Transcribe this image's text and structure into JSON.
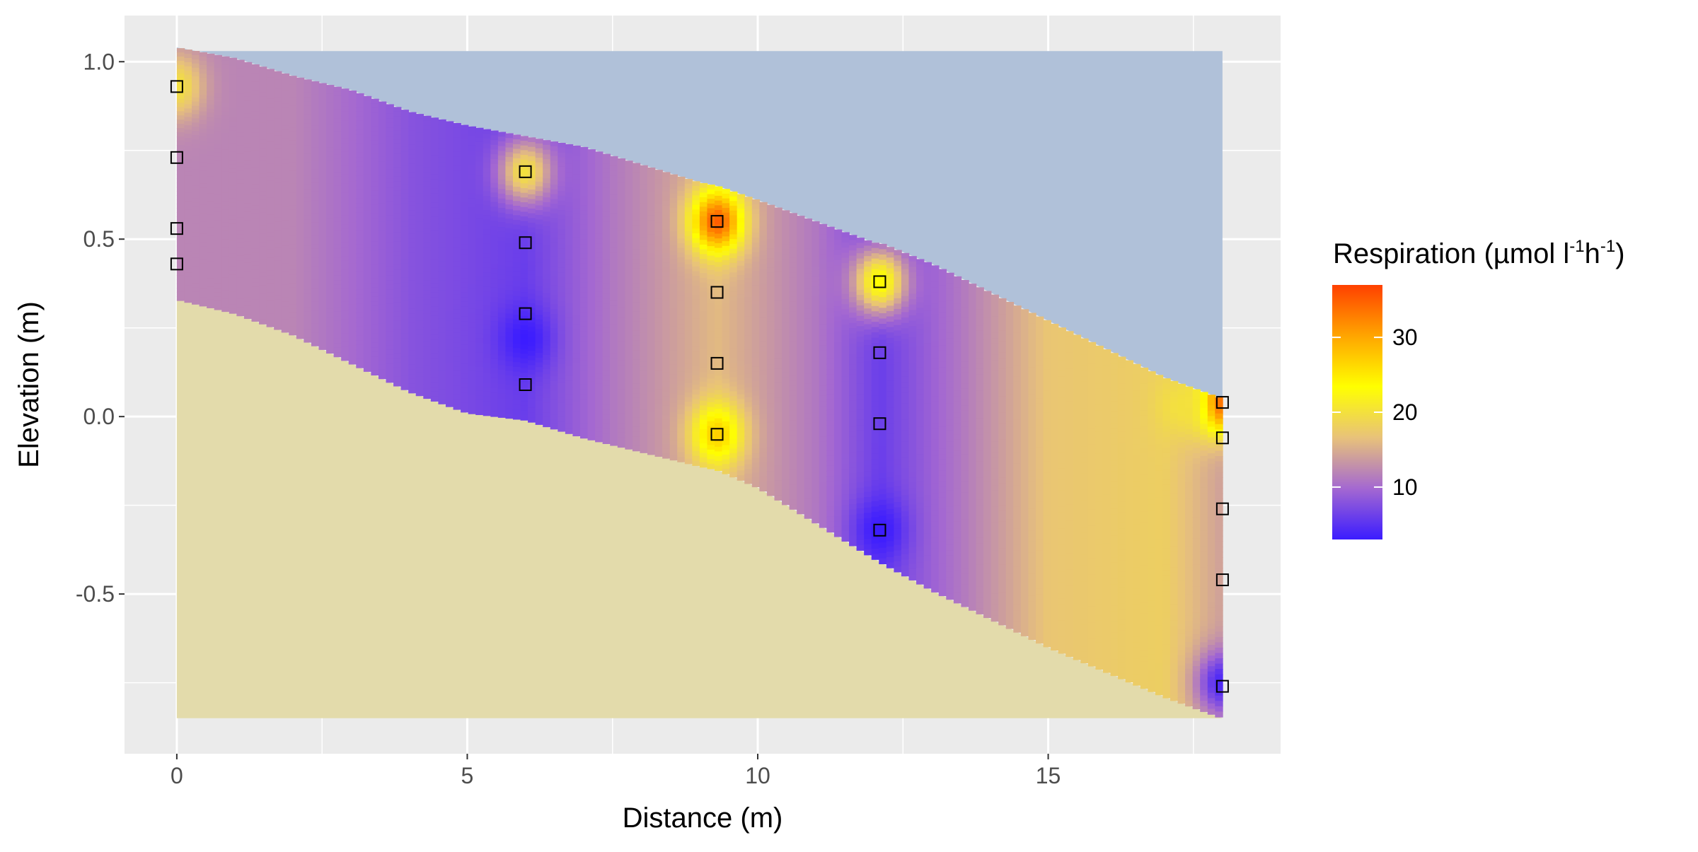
{
  "chart_data": {
    "type": "heatmap",
    "title": "",
    "xlabel": "Distance (m)",
    "ylabel": "Elevation (m)",
    "xlim": [
      -0.9,
      19.0
    ],
    "ylim": [
      -0.95,
      1.13
    ],
    "x_ticks": [
      0,
      5,
      10,
      15
    ],
    "x_tick_labels": [
      "0",
      "5",
      "10",
      "15"
    ],
    "y_ticks": [
      1.0,
      0.5,
      0.0,
      -0.5
    ],
    "y_tick_labels": [
      "1.0",
      "0.5",
      "0.0",
      "-0.5"
    ],
    "grid": true,
    "legend": {
      "title_main": "Respiration (µmol l",
      "title_sup1": "-1",
      "title_mid": "h",
      "title_sup2": "-1",
      "title_end": ")",
      "placement": "right",
      "range": [
        3,
        37
      ],
      "ticks": [
        10,
        20,
        30
      ],
      "tick_labels": [
        "10",
        "20",
        "30"
      ],
      "colors": [
        "#3b1cff",
        "#a468d1",
        "#e8c27a",
        "#ffff00",
        "#ffa500",
        "#ff4000"
      ]
    },
    "colors": {
      "water": "#b0c1d9",
      "sediment": "#e3dbab",
      "panel": "#ebebeb",
      "grid": "#ffffff"
    },
    "water_surface_y": 1.03,
    "sediment_bottom_y": -0.85,
    "water_sediment_boundary": {
      "x": [
        0,
        1,
        2,
        3,
        4,
        5,
        6,
        7,
        8,
        9,
        9.3,
        10,
        11,
        12,
        12.1,
        13,
        14,
        15,
        16,
        17,
        18
      ],
      "y": [
        1.04,
        1.01,
        0.96,
        0.92,
        0.86,
        0.82,
        0.79,
        0.76,
        0.71,
        0.66,
        0.65,
        0.61,
        0.55,
        0.49,
        0.49,
        0.43,
        0.35,
        0.27,
        0.19,
        0.11,
        0.05
      ]
    },
    "bedrock_boundary": {
      "x": [
        0,
        1,
        2,
        3,
        4,
        5,
        6,
        7,
        8,
        9,
        9.3,
        10,
        11,
        12,
        12.1,
        13,
        14,
        15,
        16,
        17,
        18
      ],
      "y": [
        0.33,
        0.29,
        0.23,
        0.15,
        0.07,
        0.01,
        -0.01,
        -0.06,
        -0.1,
        -0.14,
        -0.15,
        -0.2,
        -0.3,
        -0.4,
        -0.41,
        -0.49,
        -0.57,
        -0.65,
        -0.72,
        -0.79,
        -0.85
      ]
    },
    "respiration_field": {
      "background": 11,
      "lateral_trend": [
        {
          "x": 0,
          "v": 12
        },
        {
          "x": 2,
          "v": 12
        },
        {
          "x": 4,
          "v": 8
        },
        {
          "x": 6,
          "v": 6
        },
        {
          "x": 7.5,
          "v": 11
        },
        {
          "x": 9.3,
          "v": 16
        },
        {
          "x": 11,
          "v": 11
        },
        {
          "x": 12.1,
          "v": 6
        },
        {
          "x": 13.5,
          "v": 11
        },
        {
          "x": 15,
          "v": 17
        },
        {
          "x": 17,
          "v": 18
        },
        {
          "x": 18,
          "v": 14
        }
      ],
      "hotspots": [
        {
          "x": 0,
          "y": 0.93,
          "v": 20
        },
        {
          "x": 6,
          "y": 0.69,
          "v": 20
        },
        {
          "x": 9.3,
          "y": 0.55,
          "v": 35
        },
        {
          "x": 9.3,
          "y": -0.05,
          "v": 27
        },
        {
          "x": 12.1,
          "y": 0.38,
          "v": 24
        },
        {
          "x": 18,
          "y": 0.04,
          "v": 36
        },
        {
          "x": 17.3,
          "y": 0.03,
          "v": 20
        },
        {
          "x": 6,
          "y": 0.22,
          "v": 3
        },
        {
          "x": 12.1,
          "y": -0.32,
          "v": 3
        },
        {
          "x": 18,
          "y": -0.75,
          "v": 4
        }
      ]
    },
    "sensors": {
      "x": [
        0,
        0,
        0,
        0,
        6,
        6,
        6,
        6,
        9.3,
        9.3,
        9.3,
        9.3,
        12.1,
        12.1,
        12.1,
        12.1,
        18,
        18,
        18,
        18,
        18
      ],
      "y": [
        0.93,
        0.73,
        0.53,
        0.43,
        0.69,
        0.49,
        0.29,
        0.09,
        0.55,
        0.35,
        0.15,
        -0.05,
        0.38,
        0.18,
        -0.02,
        -0.32,
        0.04,
        -0.06,
        -0.26,
        -0.46,
        -0.76
      ]
    }
  }
}
